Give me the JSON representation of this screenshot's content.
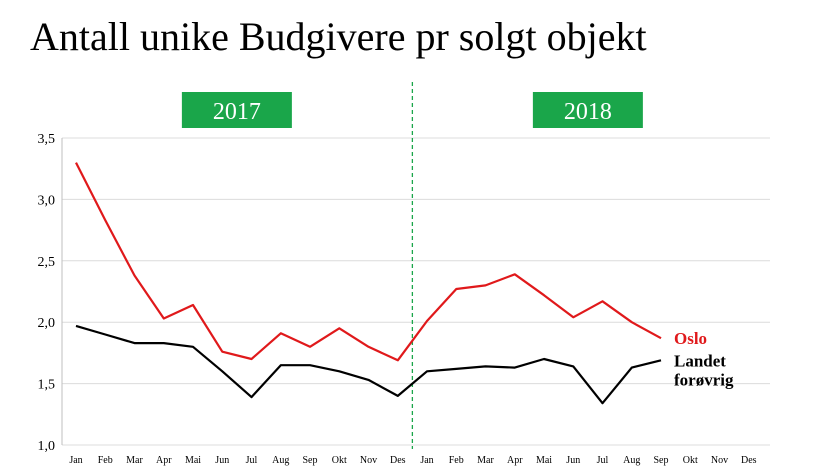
{
  "chart_data": {
    "type": "line",
    "title": "Antall unike Budgivere pr solgt objekt",
    "categories": [
      "Jan",
      "Feb",
      "Mar",
      "Apr",
      "Mai",
      "Jun",
      "Jul",
      "Aug",
      "Sep",
      "Okt",
      "Nov",
      "Des",
      "Jan",
      "Feb",
      "Mar",
      "Apr",
      "Mai",
      "Jun",
      "Jul",
      "Aug",
      "Sep",
      "Okt",
      "Nov",
      "Des"
    ],
    "yticks": [
      "1,0",
      "1,5",
      "2,0",
      "2,5",
      "3,0",
      "3,5"
    ],
    "ylim": [
      1.0,
      3.5
    ],
    "grid": true,
    "periods": [
      {
        "label": "2017",
        "start": 0,
        "end": 11
      },
      {
        "label": "2018",
        "start": 12,
        "end": 23
      }
    ],
    "period_label_color": "#1aa64a",
    "divider_color": "#1aa64a",
    "series": [
      {
        "name": "Oslo",
        "color": "#e0191b",
        "values": [
          3.3,
          2.83,
          2.38,
          2.03,
          2.14,
          1.76,
          1.7,
          1.91,
          1.8,
          1.95,
          1.8,
          1.69,
          2.01,
          2.27,
          2.3,
          2.39,
          2.22,
          2.04,
          2.17,
          2.0,
          1.87,
          null,
          null,
          null
        ]
      },
      {
        "name": "Landet forøvrig",
        "color": "#000000",
        "values": [
          1.97,
          1.9,
          1.83,
          1.83,
          1.8,
          1.6,
          1.39,
          1.65,
          1.65,
          1.6,
          1.53,
          1.4,
          1.6,
          1.62,
          1.64,
          1.63,
          1.7,
          1.64,
          1.34,
          1.63,
          1.69,
          null,
          null,
          null
        ]
      }
    ],
    "series_labels": [
      {
        "series": 0,
        "lines": [
          "Oslo"
        ]
      },
      {
        "series": 1,
        "lines": [
          "Landet",
          "forøvrig"
        ]
      }
    ]
  }
}
